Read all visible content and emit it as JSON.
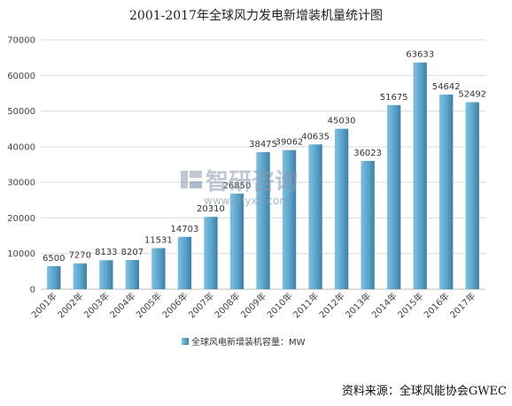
{
  "chart_data": {
    "type": "bar",
    "title": "2001-2017年全球风力发电新增装机量统计图",
    "categories": [
      "2001年",
      "2002年",
      "2003年",
      "2004年",
      "2005年",
      "2006年",
      "2007年",
      "2008年",
      "2009年",
      "2010年",
      "2011年",
      "2012年",
      "2013年",
      "2014年",
      "2015年",
      "2016年",
      "2017年"
    ],
    "series": [
      {
        "name": "全球风电新增装机容量：MW",
        "values": [
          6500,
          7270,
          8133,
          8207,
          11531,
          14703,
          20310,
          26850,
          38475,
          39062,
          40635,
          45030,
          36023,
          51675,
          63633,
          54642,
          52492
        ]
      }
    ],
    "data_labels": [
      "6500",
      "7270",
      "8133",
      "8207",
      "11531",
      "14703",
      "20310",
      "26850",
      "38475",
      "39062",
      "40635",
      "45030",
      "36023",
      "51675",
      "63633",
      "54642",
      "52492"
    ],
    "ylim": [
      0,
      70000
    ],
    "yticks": [
      0,
      10000,
      20000,
      30000,
      40000,
      50000,
      60000,
      70000
    ],
    "ytick_labels": [
      "0",
      "10000",
      "20000",
      "30000",
      "40000",
      "50000",
      "60000",
      "70000"
    ],
    "grid": true,
    "legend_position": "bottom",
    "bar_color": "#5b9fc4"
  },
  "watermark": {
    "text": "智研咨询",
    "url": "www.chyxx.com"
  },
  "source": "资料来源：全球风能协会GWEC"
}
